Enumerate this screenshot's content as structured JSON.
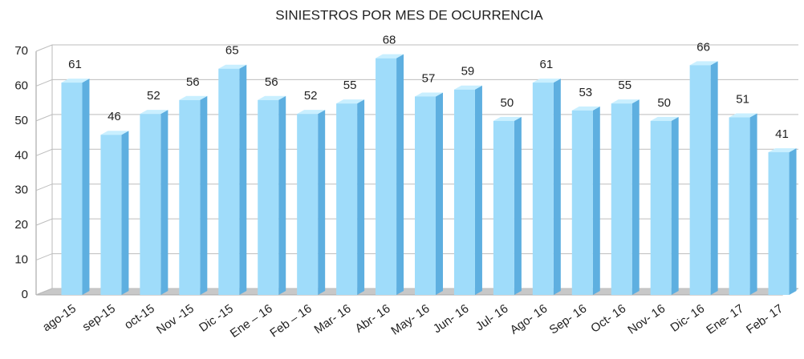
{
  "chart_data": {
    "type": "bar3d",
    "title": "SINIESTROS POR MES DE OCURRENCIA",
    "categories": [
      "ago-15",
      "sep-15",
      "oct-15",
      "Nov -15",
      "Dic -15",
      "Ene – 16",
      "Feb – 16",
      "Mar- 16",
      "Abr- 16",
      "May- 16",
      "Jun- 16",
      "Jul- 16",
      "Ago- 16",
      "Sep- 16",
      "Oct- 16",
      "Nov- 16",
      "Dic- 16",
      "Ene- 17",
      "Feb- 17"
    ],
    "values": [
      61,
      46,
      52,
      56,
      65,
      56,
      52,
      55,
      68,
      57,
      59,
      50,
      61,
      53,
      55,
      50,
      66,
      51,
      41
    ],
    "color": "#9fdcfa",
    "ylim": [
      0,
      70
    ],
    "yticks": [
      0,
      10,
      20,
      30,
      40,
      50,
      60,
      70
    ],
    "grid": true
  }
}
